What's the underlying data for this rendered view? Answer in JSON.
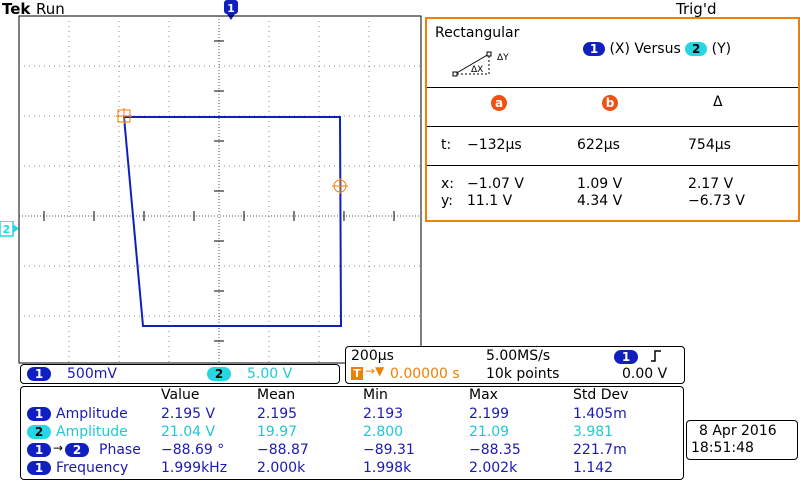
{
  "header": {
    "brand": "Tek",
    "run_state": "Run",
    "trigger_status": "Trig'd",
    "trigger_pos_marker": "1"
  },
  "xy_label": {
    "ch1": "1",
    "x_text": "(X) Versus",
    "ch2": "2",
    "y_text": "(Y)"
  },
  "ch2_marker": "2",
  "cursor": {
    "title": "Rectangular",
    "dx_label": "ΔX",
    "dy_label": "ΔY",
    "col_a": "a",
    "col_b": "b",
    "col_delta": "Δ",
    "t_label": "t:",
    "t_a": "−132µs",
    "t_b": "622µs",
    "t_delta": "754µs",
    "x_label": "x:",
    "x_a": "−1.07 V",
    "x_b": "1.09 V",
    "x_delta": "2.17 V",
    "y_label": "y:",
    "y_a": "11.1 V",
    "y_b": "4.34 V",
    "y_delta": "−6.73 V"
  },
  "channels": {
    "ch1_id": "1",
    "ch1_scale": "500mV",
    "ch2_id": "2",
    "ch2_scale": "5.00 V"
  },
  "timebase": {
    "scale": "200µs",
    "sample_rate": "5.00MS/s",
    "trigger_offset": "0.00000 s",
    "record_length": "10k points",
    "trigger_channel": "1",
    "trigger_level": "0.00 V",
    "trigger_slope_icon": "rising-edge-icon"
  },
  "measurements": {
    "headers": [
      "Value",
      "Mean",
      "Min",
      "Max",
      "Std Dev"
    ],
    "rows": [
      {
        "badge": "1",
        "badge2": "",
        "label": "Amplitude",
        "value": "2.195 V",
        "mean": "2.195",
        "min": "2.193",
        "max": "2.199",
        "std": "1.405m",
        "color": "blue"
      },
      {
        "badge": "2",
        "badge2": "",
        "label": "Amplitude",
        "value": "21.04 V",
        "mean": "19.97",
        "min": "2.800",
        "max": "21.09",
        "std": "3.981",
        "color": "cyan"
      },
      {
        "badge": "1",
        "badge2": "2",
        "label": "Phase",
        "value": "−88.69 °",
        "mean": "−88.87",
        "min": "−89.31",
        "max": "−88.35",
        "std": "221.7m",
        "color": "blue"
      },
      {
        "badge": "1",
        "badge2": "",
        "label": "Frequency",
        "value": "1.999kHz",
        "mean": "2.000k",
        "min": "1.998k",
        "max": "2.002k",
        "std": "1.142",
        "color": "blue"
      }
    ]
  },
  "datetime": {
    "date": "8 Apr 2016",
    "time": "18:51:48"
  },
  "colors": {
    "ch1": "#1020c0",
    "ch2": "#27d6e3",
    "cursor": "#f08000",
    "text_blue": "#1a1ab4"
  }
}
